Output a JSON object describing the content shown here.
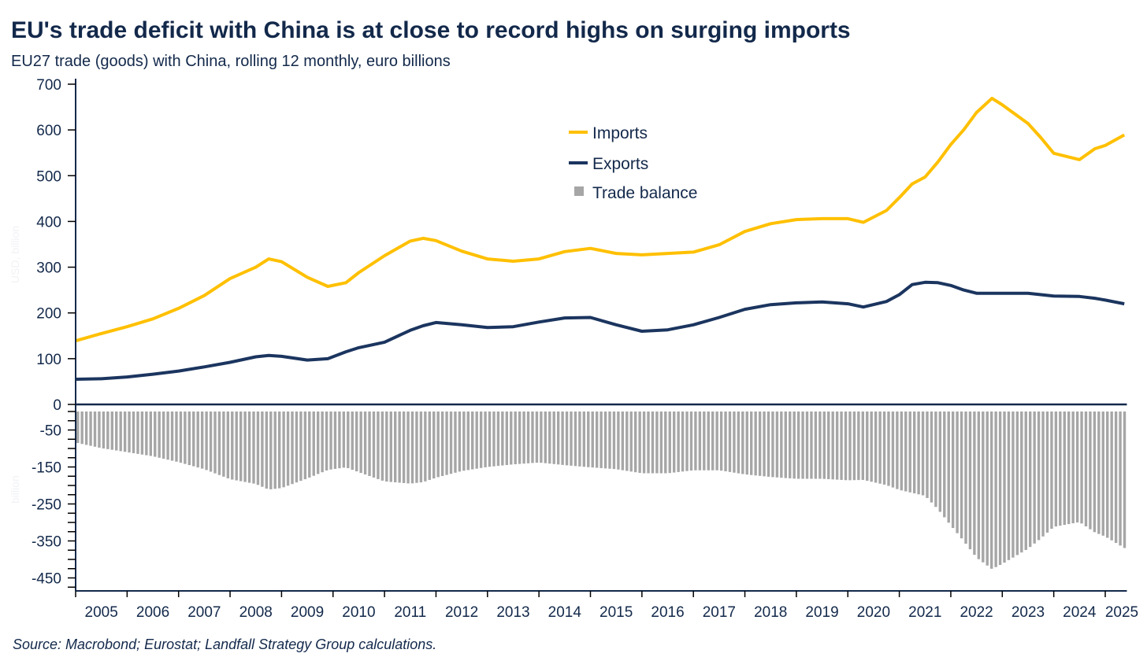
{
  "chart_data": {
    "type": "line+bar",
    "title": "EU's trade deficit with China is at close to record highs on surging imports",
    "subtitle": "EU27 trade (goods) with China, rolling 12 monthly, euro billions",
    "source": "Source: Macrobond; Eurostat; Landfall Strategy Group calculations.",
    "ghost_labels": {
      "top": "USD, billion",
      "bottom": "billion"
    },
    "x_label": "",
    "x_tick_labels": [
      "2005",
      "2006",
      "2007",
      "2008",
      "2009",
      "2010",
      "2011",
      "2012",
      "2013",
      "2014",
      "2015",
      "2016",
      "2017",
      "2018",
      "2019",
      "2020",
      "2021",
      "2022",
      "2023",
      "2024",
      "2025"
    ],
    "xlim": [
      2005.0,
      2025.42
    ],
    "x": [
      2005.0,
      2005.5,
      2006.0,
      2006.5,
      2007.0,
      2007.5,
      2008.0,
      2008.5,
      2008.75,
      2009.0,
      2009.5,
      2009.9,
      2010.25,
      2010.5,
      2011.0,
      2011.5,
      2011.75,
      2012.0,
      2012.5,
      2013.0,
      2013.5,
      2014.0,
      2014.5,
      2015.0,
      2015.5,
      2016.0,
      2016.5,
      2017.0,
      2017.5,
      2018.0,
      2018.5,
      2019.0,
      2019.5,
      2020.0,
      2020.3,
      2020.75,
      2021.0,
      2021.25,
      2021.5,
      2021.75,
      2022.0,
      2022.25,
      2022.5,
      2022.8,
      2023.0,
      2023.5,
      2023.75,
      2024.0,
      2024.5,
      2024.8,
      2025.0,
      2025.37
    ],
    "series": [
      {
        "name": "Imports",
        "type": "line",
        "panel": "top",
        "color": "#ffc000",
        "values": [
          139,
          155,
          170,
          187,
          210,
          238,
          275,
          300,
          318,
          312,
          278,
          258,
          266,
          288,
          325,
          357,
          363,
          358,
          335,
          318,
          313,
          318,
          334,
          341,
          330,
          327,
          330,
          333,
          349,
          378,
          395,
          404,
          406,
          406,
          398,
          424,
          452,
          482,
          497,
          530,
          568,
          600,
          638,
          669,
          655,
          614,
          583,
          549,
          535,
          559,
          566,
          589
        ]
      },
      {
        "name": "Exports",
        "type": "line",
        "panel": "top",
        "color": "#1b355f",
        "values": [
          55,
          56,
          60,
          66,
          73,
          82,
          92,
          104,
          107,
          105,
          97,
          100,
          115,
          124,
          136,
          162,
          172,
          179,
          174,
          168,
          170,
          180,
          189,
          190,
          174,
          160,
          163,
          174,
          190,
          208,
          218,
          222,
          224,
          220,
          213,
          225,
          240,
          262,
          267,
          266,
          260,
          250,
          243,
          243,
          243,
          243,
          240,
          237,
          236,
          232,
          228,
          220
        ]
      },
      {
        "name": "Trade balance",
        "type": "bar",
        "panel": "bottom",
        "color": "#a6a6a6",
        "values": [
          -84,
          -99,
          -110,
          -121,
          -137,
          -156,
          -183,
          -196,
          -211,
          -207,
          -181,
          -158,
          -151,
          -164,
          -189,
          -195,
          -191,
          -179,
          -161,
          -150,
          -143,
          -138,
          -145,
          -151,
          -156,
          -167,
          -167,
          -159,
          -159,
          -170,
          -177,
          -182,
          -182,
          -186,
          -185,
          -199,
          -212,
          -220,
          -228,
          -264,
          -308,
          -350,
          -395,
          -426,
          -412,
          -371,
          -343,
          -312,
          -299,
          -327,
          -338,
          -369
        ]
      }
    ],
    "top_axis": {
      "ylim": [
        0,
        700
      ],
      "tick_labels": [
        "0",
        "100",
        "200",
        "300",
        "400",
        "500",
        "600",
        "700"
      ]
    },
    "bottom_axis": {
      "ylim": [
        -482,
        0
      ],
      "tick_labels": [
        "-50",
        "-150",
        "-250",
        "-350",
        "-450"
      ],
      "minor_step": 25
    },
    "grid": false,
    "legend_placement": "top-center"
  }
}
